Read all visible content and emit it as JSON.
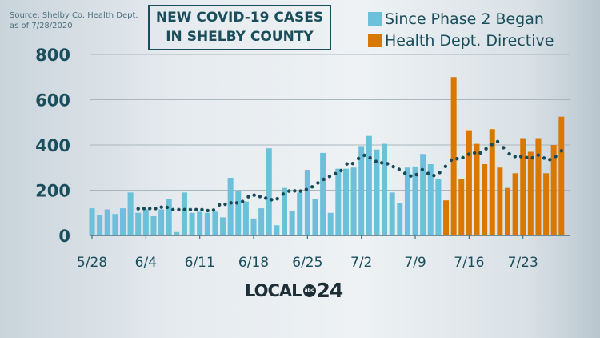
{
  "source": {
    "line1": "Source: Shelby Co. Health Dept.",
    "line2": "as of 7/28/2020"
  },
  "logo": {
    "text": "LOCAL",
    "network": "abc",
    "number": "24"
  },
  "chart_data": {
    "type": "bar",
    "title_line1": "NEW COVID-19 CASES",
    "title_line2": "IN SHELBY COUNTY",
    "ylim": [
      0,
      800
    ],
    "yticks": [
      0,
      200,
      400,
      600,
      800
    ],
    "grid": true,
    "legend_placement": "top-right",
    "xtick_labels": [
      "5/28",
      "6/4",
      "6/11",
      "6/18",
      "6/25",
      "7/2",
      "7/9",
      "7/16",
      "7/23"
    ],
    "start_date": "5/28",
    "series": [
      {
        "name": "Since Phase 2 Began",
        "color": "#6cc0da",
        "values": [
          120,
          90,
          115,
          95,
          120,
          190,
          100,
          115,
          85,
          115,
          160,
          15,
          190,
          100,
          105,
          100,
          105,
          80,
          255,
          195,
          150,
          75,
          120,
          385,
          45,
          210,
          110,
          190,
          290,
          160,
          365,
          100,
          295,
          295,
          300,
          395,
          440,
          380,
          405,
          190,
          145,
          300,
          305,
          360,
          315,
          250
        ]
      },
      {
        "name": "Health Dept. Directive",
        "color": "#d97800",
        "start": "7/13",
        "values": [
          155,
          700,
          250,
          465,
          405,
          315,
          470,
          300,
          210,
          275,
          430,
          370,
          430,
          275,
          400,
          525
        ]
      }
    ],
    "moving_average": {
      "style": "dotted",
      "color": "#174a57",
      "start": "6/3",
      "end": "7/28",
      "values": [
        118,
        119,
        119,
        119,
        125,
        124,
        114,
        114,
        114,
        114,
        114,
        114,
        110,
        112,
        135,
        138,
        144,
        144,
        150,
        171,
        178,
        172,
        165,
        158,
        162,
        183,
        196,
        197,
        196,
        203,
        215,
        232,
        248,
        261,
        273,
        287,
        316,
        318,
        340,
        354,
        343,
        327,
        321,
        317,
        304,
        292,
        275,
        263,
        269,
        291,
        274,
        265,
        278,
        305,
        333,
        339,
        344,
        359,
        365,
        365,
        383,
        402,
        415,
        388,
        361,
        349,
        349,
        344,
        343,
        355,
        342,
        335,
        349,
        374
      ]
    }
  }
}
